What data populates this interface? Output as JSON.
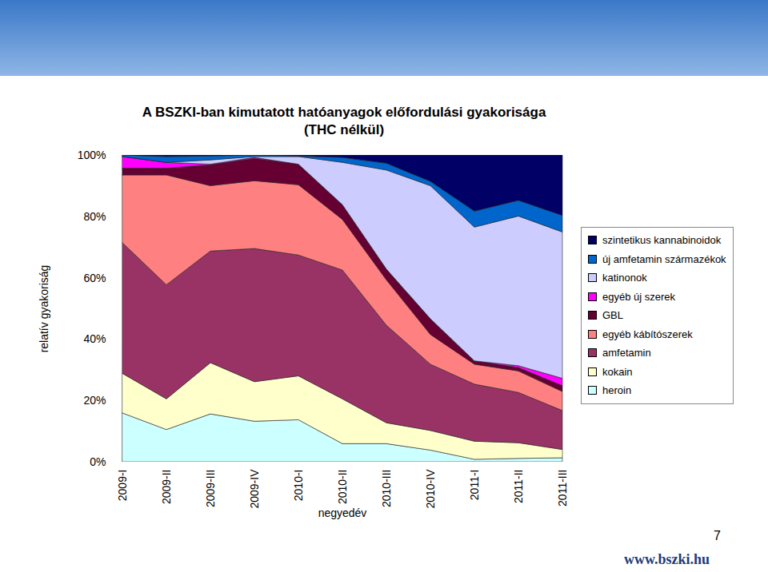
{
  "chart_data": {
    "type": "area",
    "title": "A BSZKI-ban kimutatott hatóanyagok előfordulási gyakorisága",
    "subtitle": "(THC nélkül)",
    "x_label": "negyedév",
    "y_label": "relatív gyakoriság",
    "stacked": true,
    "grid": false,
    "legend": "right",
    "categories": [
      "2009-I",
      "2009-II",
      "2009-III",
      "2009-IV",
      "2010-I",
      "2010-II",
      "2010-III",
      "2010-IV",
      "2011-I",
      "2011-II",
      "2011-III"
    ],
    "ylim": [
      0,
      100
    ],
    "yticks": [
      {
        "value": 0,
        "label": "0%"
      },
      {
        "value": 20,
        "label": "20%"
      },
      {
        "value": 40,
        "label": "40%"
      },
      {
        "value": 60,
        "label": "60%"
      },
      {
        "value": 80,
        "label": "80%"
      },
      {
        "value": 100,
        "label": "100%"
      }
    ],
    "series": [
      {
        "name": "heroin",
        "color": "#ccffff",
        "values": [
          15.9,
          10.5,
          15.6,
          13.2,
          13.7,
          5.9,
          5.9,
          3.8,
          0.8,
          1.1,
          1.3
        ]
      },
      {
        "name": "kokain",
        "color": "#ffffcc",
        "values": [
          12.9,
          10.0,
          16.7,
          12.9,
          14.3,
          14.6,
          6.8,
          6.4,
          5.9,
          5.1,
          2.7
        ]
      },
      {
        "name": "amfetamin",
        "color": "#993366",
        "values": [
          42.6,
          37.2,
          36.4,
          43.4,
          39.4,
          42.0,
          31.8,
          21.6,
          18.6,
          16.4,
          12.7
        ]
      },
      {
        "name": "egyéb kábítószerek",
        "color": "#ff8080",
        "values": [
          22.1,
          35.8,
          21.3,
          22.1,
          22.9,
          16.5,
          14.8,
          9.7,
          6.5,
          7.0,
          6.2
        ]
      },
      {
        "name": "GBL",
        "color": "#660033",
        "values": [
          2.2,
          2.2,
          6.8,
          7.3,
          6.7,
          4.8,
          3.5,
          5.1,
          1.1,
          1.1,
          1.9
        ]
      },
      {
        "name": "egyéb új szerek",
        "color": "#ff00ff",
        "values": [
          3.8,
          1.9,
          0.2,
          0.3,
          0.0,
          0.0,
          0.0,
          0.0,
          0.0,
          0.6,
          2.4
        ]
      },
      {
        "name": "katinonok",
        "color": "#ccccff",
        "values": [
          0.0,
          0.0,
          1.4,
          0.3,
          2.5,
          13.8,
          32.3,
          43.4,
          43.6,
          48.8,
          47.7
        ]
      },
      {
        "name": "új amfetamin származékok",
        "color": "#0066cc",
        "values": [
          0.5,
          1.9,
          1.3,
          0.5,
          0.2,
          1.6,
          2.2,
          1.4,
          5.2,
          5.1,
          5.4
        ]
      },
      {
        "name": "szintetikus kannabinoidok",
        "color": "#000066",
        "values": [
          0.0,
          0.5,
          0.3,
          0.0,
          0.3,
          0.8,
          2.7,
          8.6,
          18.3,
          14.8,
          19.7
        ]
      }
    ],
    "annotations": [
      "7",
      "www.bszki.hu"
    ]
  }
}
